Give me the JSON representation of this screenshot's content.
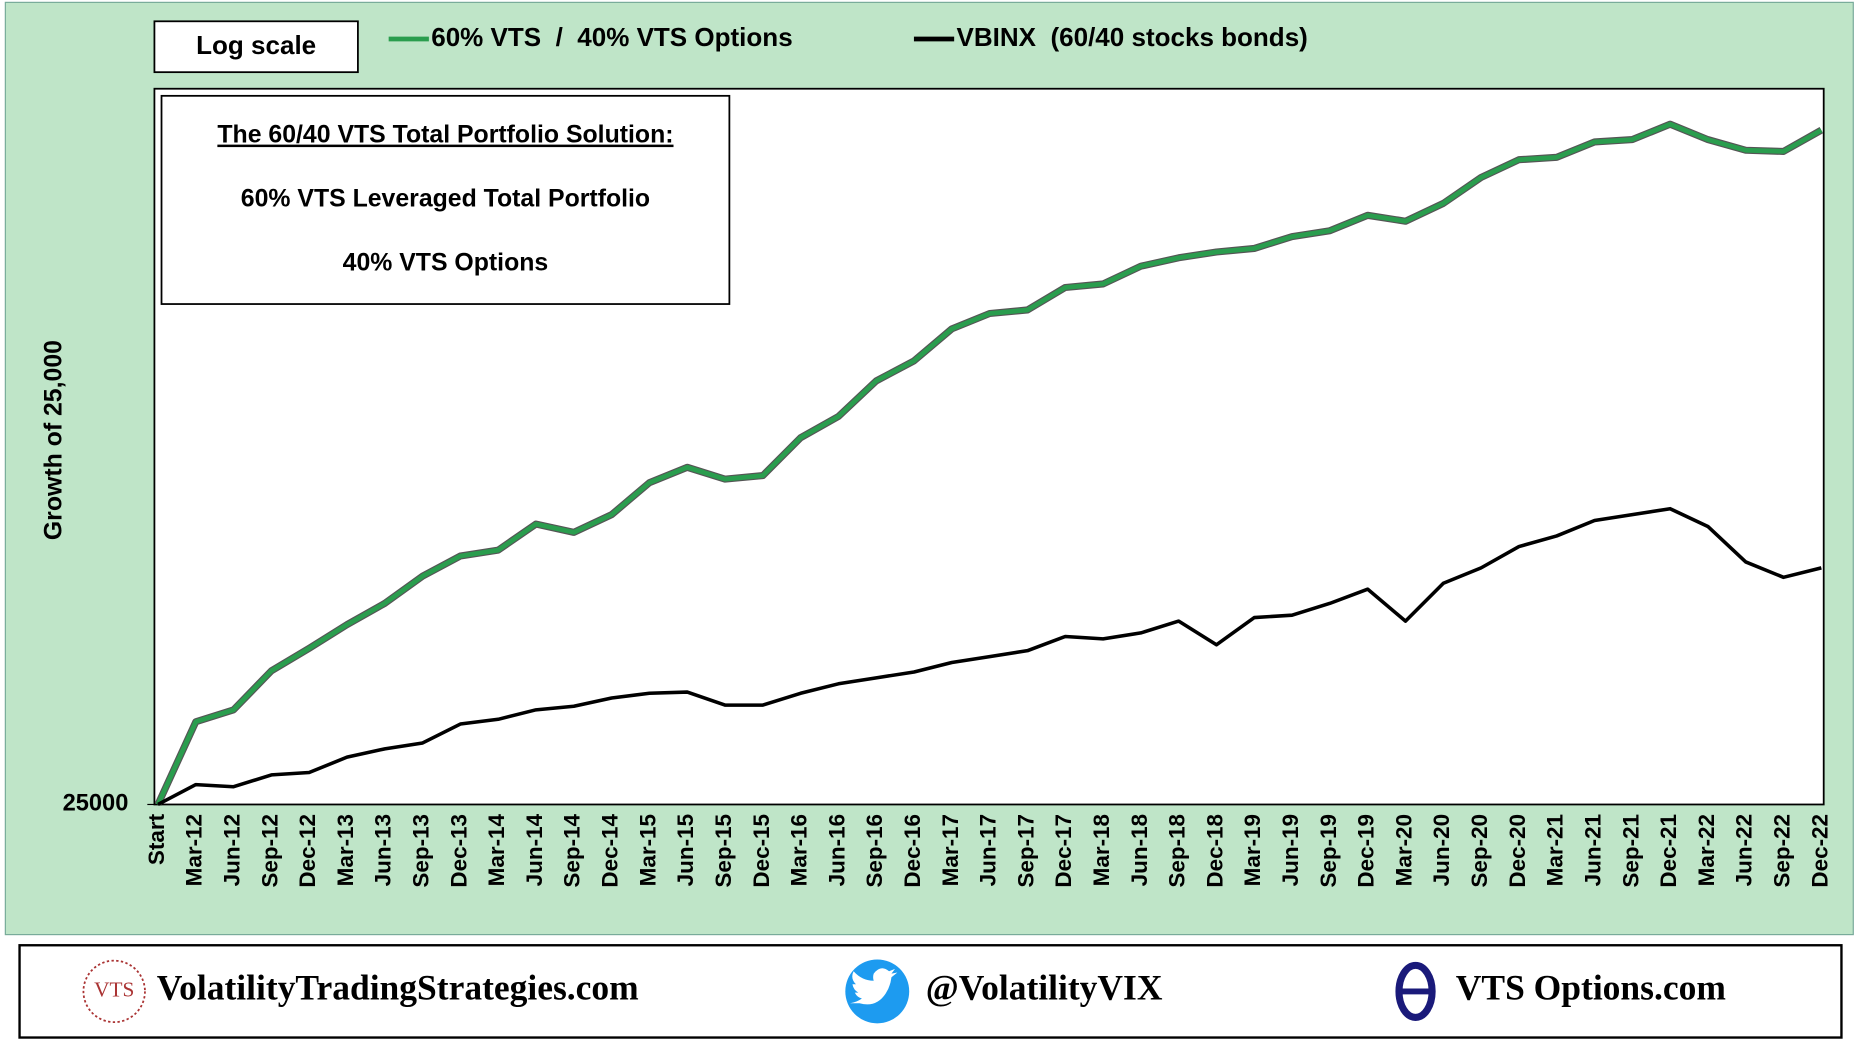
{
  "chart_data": {
    "type": "line",
    "annotation": "Log scale",
    "box_title": "The 60/40 VTS Total Portfolio Solution:",
    "box_lines": [
      "60% VTS Leveraged Total Portfolio",
      "40% VTS Options"
    ],
    "ylabel": "Growth of 25,000",
    "log_scale": true,
    "grid": false,
    "legend": "top",
    "ylim": [
      25000,
      600000
    ],
    "yticks": [
      25000
    ],
    "categories": [
      "Start",
      "Mar-12",
      "Jun-12",
      "Sep-12",
      "Dec-12",
      "Mar-13",
      "Jun-13",
      "Sep-13",
      "Dec-13",
      "Mar-14",
      "Jun-14",
      "Sep-14",
      "Dec-14",
      "Mar-15",
      "Jun-15",
      "Sep-15",
      "Dec-15",
      "Mar-16",
      "Jun-16",
      "Sep-16",
      "Dec-16",
      "Mar-17",
      "Jun-17",
      "Sep-17",
      "Dec-17",
      "Mar-18",
      "Jun-18",
      "Sep-18",
      "Dec-18",
      "Mar-19",
      "Jun-19",
      "Sep-19",
      "Dec-19",
      "Mar-20",
      "Jun-20",
      "Sep-20",
      "Dec-20",
      "Mar-21",
      "Jun-21",
      "Sep-21",
      "Dec-21",
      "Mar-22",
      "Jun-22",
      "Sep-22",
      "Dec-22"
    ],
    "series": [
      {
        "name": "60% VTS  /  40% VTS Options",
        "color": "#2a9d4e",
        "values": [
          25000,
          36100,
          38060,
          45260,
          50010,
          55550,
          61060,
          68900,
          75340,
          77340,
          86820,
          83700,
          90550,
          104350,
          111700,
          106000,
          107700,
          127400,
          140000,
          163900,
          179200,
          206600,
          221200,
          224700,
          248300,
          252200,
          272800,
          283200,
          290600,
          295300,
          311100,
          319400,
          342000,
          333200,
          360600,
          404700,
          437800,
          442400,
          473800,
          478600,
          512500,
          478600,
          456600,
          454300,
          499200
        ]
      },
      {
        "name": "VBINX  (60/40 stocks bonds)",
        "color": "#000000",
        "values": [
          25000,
          27300,
          27050,
          28510,
          28810,
          30840,
          32000,
          32850,
          35730,
          36490,
          38060,
          38670,
          40110,
          40960,
          41180,
          38870,
          38870,
          40960,
          42720,
          43860,
          45030,
          46960,
          48200,
          49490,
          52710,
          52160,
          53540,
          56430,
          50810,
          57330,
          57940,
          61060,
          65030,
          56430,
          66760,
          71490,
          78580,
          82370,
          88190,
          90550,
          92950,
          85920,
          73390,
          68540,
          71490
        ]
      }
    ]
  },
  "footer": {
    "logo": "VTS",
    "site": "VolatilityTradingStrategies.com",
    "twitter": "@VolatilityVIX",
    "options": "VTS Options.com"
  }
}
